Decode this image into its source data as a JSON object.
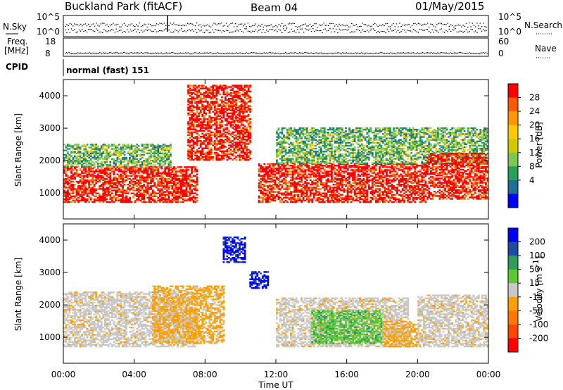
{
  "header": {
    "title": "Buckland Park (fitACF)",
    "beam": "Beam 04",
    "date": "01/May/2015"
  },
  "strip_panels": {
    "nsky_label": "N.Sky",
    "nsky_ticks": [
      "10^5",
      "10^0"
    ],
    "nsearch_label": "N.Search",
    "nsearch_ticks": [
      "10^5",
      "10^0"
    ],
    "freq_label_1": "Freq.",
    "freq_label_2": "[MHz]",
    "freq_ticks": [
      "18",
      "8"
    ],
    "nave_label": "Nave",
    "nave_ticks": [
      "60",
      "0"
    ],
    "cpid_label": "CPID",
    "cpid_text": "normal (fast) 151"
  },
  "chart_data": [
    {
      "type": "heatmap",
      "name": "power",
      "ylabel": "Slant Range [km]",
      "yticks": [
        "4000",
        "3000",
        "2000",
        "1000"
      ],
      "ylim": [
        200,
        4500
      ],
      "xlim": [
        0,
        24
      ],
      "colorbar_label": "Power [dB]",
      "colorbar_ticks": [
        "28",
        "24",
        "20",
        "16",
        "12",
        "8",
        "4"
      ],
      "colorbar_colors": [
        "#ff0000",
        "#ff5a00",
        "#ff9600",
        "#ffc800",
        "#d2c800",
        "#7dc850",
        "#28a05a",
        "#1e6e96",
        "#0000ff"
      ],
      "echo_regions": [
        {
          "t0": 0.0,
          "t1": 7.5,
          "r0": 700,
          "r1": 1800,
          "level": "high"
        },
        {
          "t0": 0.0,
          "t1": 6.0,
          "r0": 1800,
          "r1": 2500,
          "level": "mid"
        },
        {
          "t0": 7.0,
          "t1": 10.5,
          "r0": 2000,
          "r1": 4300,
          "level": "high"
        },
        {
          "t0": 11.0,
          "t1": 20.5,
          "r0": 700,
          "r1": 1900,
          "level": "high"
        },
        {
          "t0": 12.0,
          "t1": 24.0,
          "r0": 1900,
          "r1": 3000,
          "level": "mid"
        },
        {
          "t0": 20.5,
          "t1": 24.0,
          "r0": 800,
          "r1": 2200,
          "level": "high"
        }
      ]
    },
    {
      "type": "heatmap",
      "name": "velocity",
      "ylabel": "Slant Range [km]",
      "yticks": [
        "4000",
        "3000",
        "2000",
        "1000"
      ],
      "ylim": [
        200,
        4500
      ],
      "xlabel": "Time UT",
      "xticks": [
        "00:00",
        "04:00",
        "08:00",
        "12:00",
        "16:00",
        "20:00",
        "00:00"
      ],
      "xlim": [
        0,
        24
      ],
      "colorbar_label": "Velocity [m s",
      "colorbar_label_sup": "-1",
      "colorbar_label_end": "]",
      "colorbar_ticks": [
        "200",
        "100",
        "50",
        "15",
        "-15",
        "-50",
        "-100",
        "-200"
      ],
      "colorbar_colors": [
        "#0000ff",
        "#1e4ea0",
        "#2f9e5a",
        "#5ec832",
        "#c8c8c8",
        "#ffa000",
        "#ff7800",
        "#ff4600",
        "#ff0000"
      ],
      "echo_regions": [
        {
          "t0": 0.0,
          "t1": 7.5,
          "r0": 700,
          "r1": 2400,
          "level": "ground"
        },
        {
          "t0": 5.0,
          "t1": 9.0,
          "r0": 800,
          "r1": 2600,
          "level": "neg"
        },
        {
          "t0": 9.0,
          "t1": 10.2,
          "r0": 3300,
          "r1": 4100,
          "level": "pos_high"
        },
        {
          "t0": 10.5,
          "t1": 11.5,
          "r0": 2500,
          "r1": 3000,
          "level": "pos_high"
        },
        {
          "t0": 12.0,
          "t1": 19.5,
          "r0": 700,
          "r1": 2200,
          "level": "ground"
        },
        {
          "t0": 14.0,
          "t1": 18.0,
          "r0": 800,
          "r1": 1800,
          "level": "pos_low"
        },
        {
          "t0": 18.0,
          "t1": 20.0,
          "r0": 700,
          "r1": 1500,
          "level": "neg"
        },
        {
          "t0": 20.0,
          "t1": 24.0,
          "r0": 700,
          "r1": 2300,
          "level": "ground"
        }
      ]
    }
  ]
}
